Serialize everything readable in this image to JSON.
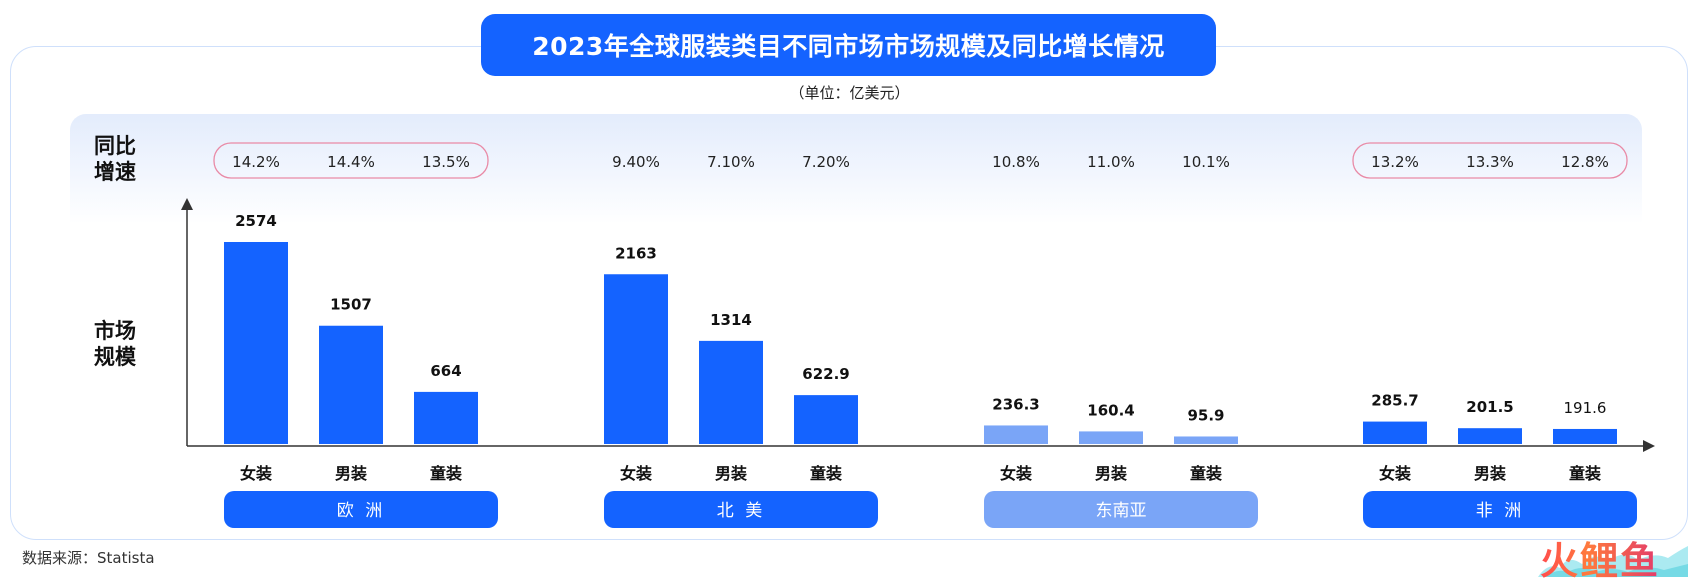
{
  "title": "2023年全球服装类目不同市场市场规模及同比增长情况",
  "unit": "（单位：亿美元）",
  "row_labels": {
    "growth": [
      "同比",
      "增速"
    ],
    "size": [
      "市场",
      "规模"
    ]
  },
  "source": "数据来源：Statista",
  "logo": "火鲤鱼",
  "colors": {
    "primary": "#1463ff",
    "secondary": "#7aa5f7",
    "highlight_border": "#e98aa6"
  },
  "chart_data": {
    "type": "bar",
    "categories": [
      "女装",
      "男装",
      "童装"
    ],
    "groups": [
      {
        "name": "欧洲",
        "values": [
          2574,
          1507,
          664
        ],
        "labels": [
          "2574",
          "1507",
          "664"
        ],
        "growth": [
          "14.2%",
          "14.4%",
          "13.5%"
        ],
        "highlight": true,
        "color": "primary"
      },
      {
        "name": "北美",
        "values": [
          2163,
          1314,
          622.9
        ],
        "labels": [
          "2163",
          "1314",
          "622.9"
        ],
        "growth": [
          "9.40%",
          "7.10%",
          "7.20%"
        ],
        "highlight": false,
        "color": "primary"
      },
      {
        "name": "东南亚",
        "values": [
          236.3,
          160.4,
          95.9
        ],
        "labels": [
          "236.3",
          "160.4",
          "95.9"
        ],
        "growth": [
          "10.8%",
          "11.0%",
          "10.1%"
        ],
        "highlight": false,
        "color": "secondary"
      },
      {
        "name": "非洲",
        "values": [
          285.7,
          201.5,
          191.6
        ],
        "labels": [
          "285.7",
          "201.5",
          "191.6"
        ],
        "growth": [
          "13.2%",
          "13.3%",
          "12.8%"
        ],
        "highlight": true,
        "color": "primary"
      }
    ],
    "xlabel": "",
    "ylabel": "",
    "ylim": [
      0,
      2574
    ],
    "grid": false,
    "legend": "none"
  }
}
